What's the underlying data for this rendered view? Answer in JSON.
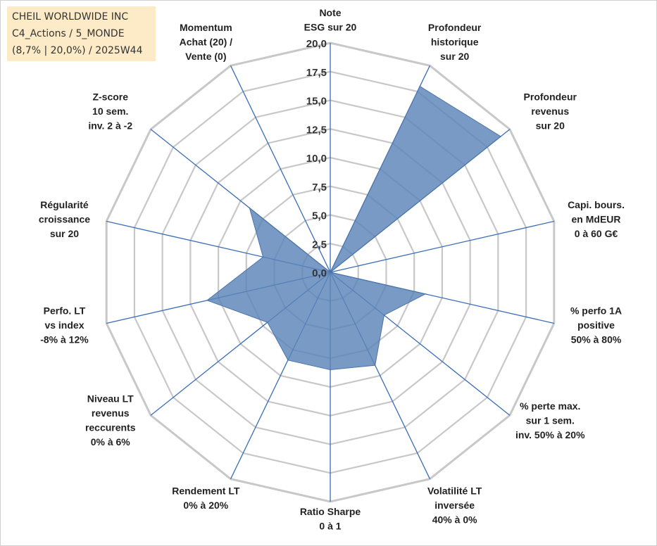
{
  "header": {
    "lines": [
      "CHEIL WORLDWIDE INC",
      "C4_Actions / 5_MONDE",
      "(8,7% | 20,0%) / 2025W44"
    ]
  },
  "chart_data": {
    "type": "radar",
    "r_ticks": [
      "0,0",
      "2,5",
      "5,0",
      "7,5",
      "10,0",
      "12,5",
      "15,0",
      "17,5",
      "20,0"
    ],
    "rlim": [
      0,
      20
    ],
    "grid": true,
    "fill_color": "#5b84b8",
    "axis_color": "#3a6db5",
    "grid_color": "#c8c8c8",
    "axes": [
      {
        "label": [
          "Note",
          "ESG sur 20"
        ],
        "value": 0
      },
      {
        "label": [
          "Profondeur",
          "historique",
          "sur 20"
        ],
        "value": 18
      },
      {
        "label": [
          "Profondeur",
          "revenus",
          "sur 20"
        ],
        "value": 19
      },
      {
        "label": [
          "Capi. bours.",
          "en MdEUR",
          "0 à 60 G€"
        ],
        "value": 0
      },
      {
        "label": [
          "% perfo 1A",
          "positive",
          "50% à 80%"
        ],
        "value": 8.5
      },
      {
        "label": [
          "% perte max.",
          "sur 1 sem.",
          "inv. 50% à 20%"
        ],
        "value": 6
      },
      {
        "label": [
          "Volatilité LT",
          "inversée",
          "40% à 0%"
        ],
        "value": 9
      },
      {
        "label": [
          "Ratio Sharpe",
          "0 à 1"
        ],
        "value": 8.5
      },
      {
        "label": [
          "Rendement LT",
          "0% à 20%"
        ],
        "value": 8.5
      },
      {
        "label": [
          "Niveau LT",
          "revenus",
          "reccurents",
          "0% à 6%"
        ],
        "value": 7
      },
      {
        "label": [
          "Perfo. LT",
          "vs index",
          "-8% à 12%"
        ],
        "value": 11
      },
      {
        "label": [
          "Régularité",
          "croissance",
          "sur 20"
        ],
        "value": 6
      },
      {
        "label": [
          "Z-score",
          "10 sem.",
          "inv. 2 à -2"
        ],
        "value": 9
      },
      {
        "label": [
          "Momentum",
          "Achat (20) /",
          "Vente (0)"
        ],
        "value": 0
      }
    ]
  }
}
